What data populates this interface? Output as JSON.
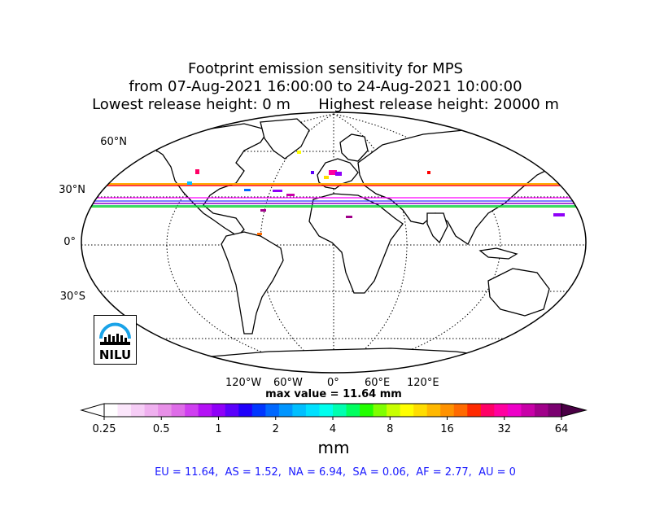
{
  "title": {
    "line1": "Footprint emission sensitivity for MPS",
    "line2": "from 07-Aug-2021 16:00:00 to 24-Aug-2021 10:00:00",
    "line3": "Lowest release height: 0 m      Highest release height: 20000 m"
  },
  "map": {
    "lat_labels": [
      "60°N",
      "30°N",
      "0°",
      "30°S"
    ],
    "lon_labels": [
      "120°W",
      "60°W",
      "0°",
      "60°E",
      "120°E"
    ],
    "logo_text": "NILU",
    "max_value": "max value = 11.64 mm"
  },
  "colorbar": {
    "ticks": [
      "0.25",
      "0.5",
      "1",
      "2",
      "4",
      "8",
      "16",
      "32",
      "64"
    ],
    "unit": "mm",
    "colors": [
      "#ffffff",
      "#fbe6fb",
      "#f6cdf6",
      "#efb0ef",
      "#e890e8",
      "#de6ce8",
      "#cf3ff0",
      "#b411f5",
      "#8f00f8",
      "#5b00fb",
      "#2000fb",
      "#0036ff",
      "#0068ff",
      "#0095ff",
      "#00bfff",
      "#00e0ff",
      "#00ffee",
      "#00ffb0",
      "#00ff60",
      "#22ff00",
      "#7fff00",
      "#c8ff00",
      "#ffff00",
      "#ffdd00",
      "#ffb800",
      "#ff9200",
      "#ff6a00",
      "#ff2a00",
      "#ff0066",
      "#ff00a0",
      "#ee00c8",
      "#c800a8",
      "#a0008a",
      "#7a0070"
    ]
  },
  "regions_text": "EU = 11.64,  AS = 1.52,  NA = 6.94,  SA = 0.06,  AF = 2.77,  AU = 0"
}
